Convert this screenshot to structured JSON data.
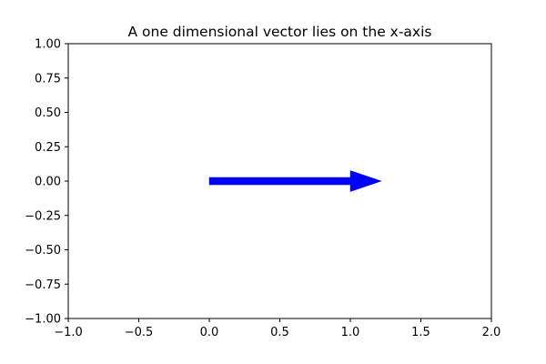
{
  "chart_data": {
    "type": "vector",
    "title": "A one dimensional vector lies on the x-axis",
    "xlabel": "",
    "ylabel": "",
    "xlim": [
      -1.0,
      2.0
    ],
    "ylim": [
      -1.0,
      1.0
    ],
    "xticks": [
      -1.0,
      -0.5,
      0.0,
      0.5,
      1.0,
      1.5,
      2.0
    ],
    "xtick_labels": [
      "−1.0",
      "−0.5",
      "0.0",
      "0.5",
      "1.0",
      "1.5",
      "2.0"
    ],
    "yticks": [
      1.0,
      0.75,
      0.5,
      0.25,
      0.0,
      -0.25,
      -0.5,
      -0.75,
      -1.0
    ],
    "ytick_labels": [
      "1.00",
      "0.75",
      "0.50",
      "0.25",
      "0.00",
      "−0.25",
      "−0.50",
      "−0.75",
      "−1.00"
    ],
    "grid": false,
    "vectors": [
      {
        "origin": [
          0,
          0
        ],
        "components": [
          1,
          0
        ],
        "color": "#0000ff"
      }
    ]
  }
}
